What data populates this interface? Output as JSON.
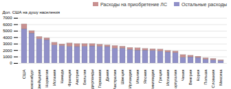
{
  "chart_data": {
    "type": "bar",
    "stacked": true,
    "categories": [
      "США",
      "Люксенбург",
      "Швейцария",
      "Норвегия",
      "Испания",
      "Канада",
      "Франция",
      "Австрия",
      "Бельгия",
      "Нидерланды",
      "Германия",
      "Дания",
      "Австралия",
      "Швеция",
      "Ирландия",
      "Италия",
      "Япония",
      "Финляндия",
      "Греция",
      "Испания",
      "Португалия",
      "Чехия",
      "Венгрия",
      "Корея",
      "Польша",
      "Словакия",
      "Мексика"
    ],
    "series": [
      {
        "name": "Остальные расходы",
        "color": "#9090c8",
        "values": [
          5300,
          4650,
          3750,
          3600,
          2800,
          2700,
          2600,
          2550,
          2600,
          2650,
          2600,
          2550,
          2300,
          2300,
          2100,
          2000,
          2000,
          1950,
          1850,
          1700,
          1600,
          900,
          950,
          850,
          600,
          500,
          350
        ]
      },
      {
        "name": "Расходы на приобретение ЛС",
        "color": "#c89090",
        "values": [
          750,
          350,
          350,
          300,
          400,
          250,
          500,
          450,
          400,
          350,
          300,
          250,
          400,
          300,
          300,
          350,
          250,
          250,
          300,
          250,
          250,
          400,
          250,
          200,
          200,
          200,
          150
        ]
      }
    ],
    "ylabel": "Дол. США на душу населения",
    "ylim": [
      0,
      7000
    ],
    "yticks": [
      0,
      1000,
      2000,
      3000,
      4000,
      5000,
      6000,
      7000
    ],
    "grid": true,
    "legend": "upper right"
  }
}
